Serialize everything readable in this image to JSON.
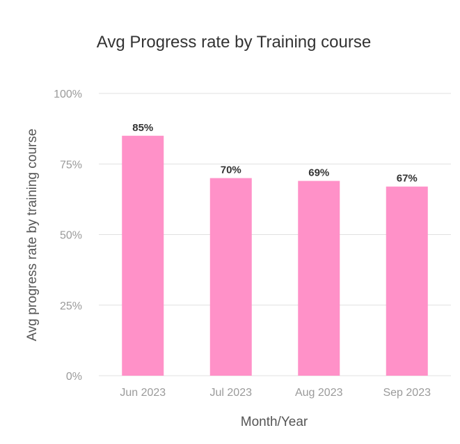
{
  "chart_data": {
    "type": "bar",
    "title": "Avg Progress rate by Training course",
    "xlabel": "Month/Year",
    "ylabel": "Avg progress rate by training course",
    "categories": [
      "Jun 2023",
      "Jul 2023",
      "Aug 2023",
      "Sep 2023"
    ],
    "values": [
      85,
      70,
      69,
      67
    ],
    "value_labels": [
      "85%",
      "70%",
      "69%",
      "67%"
    ],
    "ylim": [
      0,
      100
    ],
    "yticks": [
      {
        "value": 0,
        "label": "0%"
      },
      {
        "value": 25,
        "label": "25%"
      },
      {
        "value": 50,
        "label": "50%"
      },
      {
        "value": 75,
        "label": "75%"
      },
      {
        "value": 100,
        "label": "100%"
      }
    ],
    "grid": true,
    "bar_color": "#ff91c8",
    "grid_color": "#e0e0e0"
  }
}
